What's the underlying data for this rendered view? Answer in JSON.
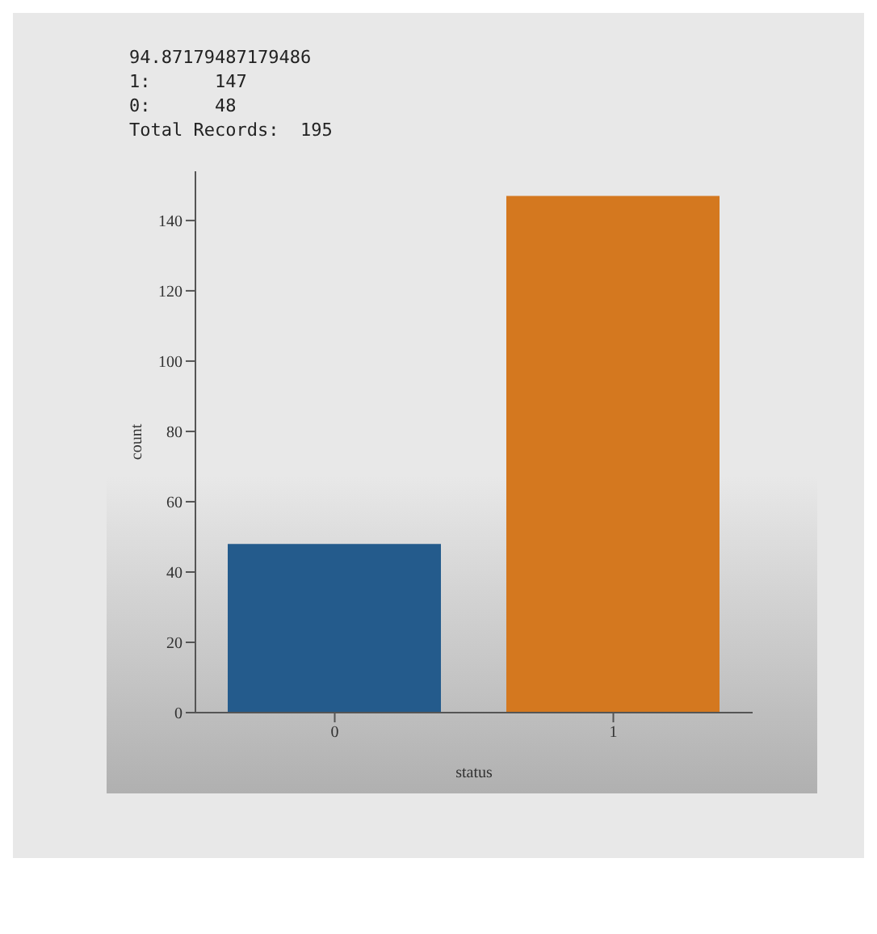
{
  "chart_data": {
    "type": "bar",
    "xlabel": "status",
    "ylabel": "count",
    "categories": [
      "0",
      "1"
    ],
    "values": [
      48,
      147
    ],
    "colors": [
      "#245b8c",
      "#d4781f"
    ],
    "ylim": [
      0,
      154
    ],
    "yticks": [
      0,
      20,
      40,
      60,
      80,
      100,
      120,
      140
    ],
    "annotations": [
      "94.87179487179486",
      "1:      147",
      "0:      48",
      "Total Records:  195"
    ]
  }
}
